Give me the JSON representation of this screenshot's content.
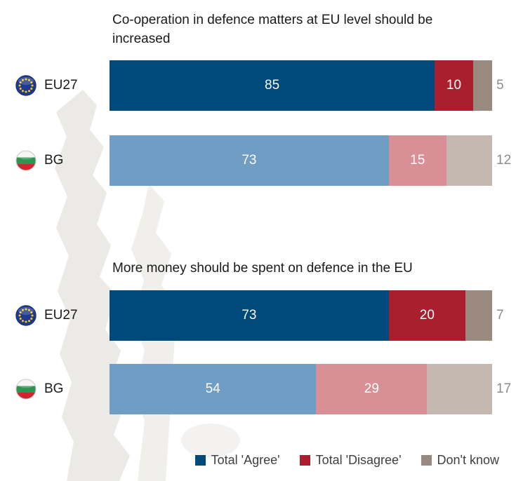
{
  "chart_data": [
    {
      "type": "bar",
      "orientation": "horizontal",
      "stacked": true,
      "title": "Co-operation in defence matters at EU level should be increased",
      "categories": [
        "EU27",
        "BG"
      ],
      "series": [
        {
          "name": "Total 'Agree'",
          "values": [
            85,
            73
          ]
        },
        {
          "name": "Total 'Disagree'",
          "values": [
            10,
            15
          ]
        },
        {
          "name": "Don't know",
          "values": [
            5,
            12
          ]
        }
      ],
      "xlim": [
        0,
        100
      ],
      "value_labels": "inside white, last series outside right in gray",
      "grid": false
    },
    {
      "type": "bar",
      "orientation": "horizontal",
      "stacked": true,
      "title": "More money should be spent on defence in the EU",
      "categories": [
        "EU27",
        "BG"
      ],
      "series": [
        {
          "name": "Total 'Agree'",
          "values": [
            73,
            54
          ]
        },
        {
          "name": "Total 'Disagree'",
          "values": [
            20,
            29
          ]
        },
        {
          "name": "Don't know",
          "values": [
            7,
            17
          ]
        }
      ],
      "xlim": [
        0,
        100
      ],
      "value_labels": "inside white, last series outside right in gray",
      "grid": false
    }
  ],
  "row_labels": [
    {
      "label": "EU27",
      "icon": "eu-flag-icon"
    },
    {
      "label": "BG",
      "icon": "bulgaria-flag-icon"
    }
  ],
  "series_keys": [
    "agree",
    "disagree",
    "dont-know"
  ],
  "palettes": [
    [
      "#00497b",
      "#aa1e2d",
      "#99897e"
    ],
    [
      "#6f9dc4",
      "#d88f96",
      "#c5b8b0"
    ]
  ],
  "legend": {
    "position": "bottom-right",
    "items": [
      {
        "label": "Total 'Agree'",
        "color": "#00497b"
      },
      {
        "label": "Total 'Disagree'",
        "color": "#aa1e2d"
      },
      {
        "label": "Don't know",
        "color": "#99897e"
      }
    ]
  },
  "colors": {
    "background": "#ffffff",
    "title_text": "#1a1a1a",
    "bar_value_text": "#ffffff",
    "outside_value": "#8c8c8c",
    "map_silhouette": "#eceae6"
  }
}
